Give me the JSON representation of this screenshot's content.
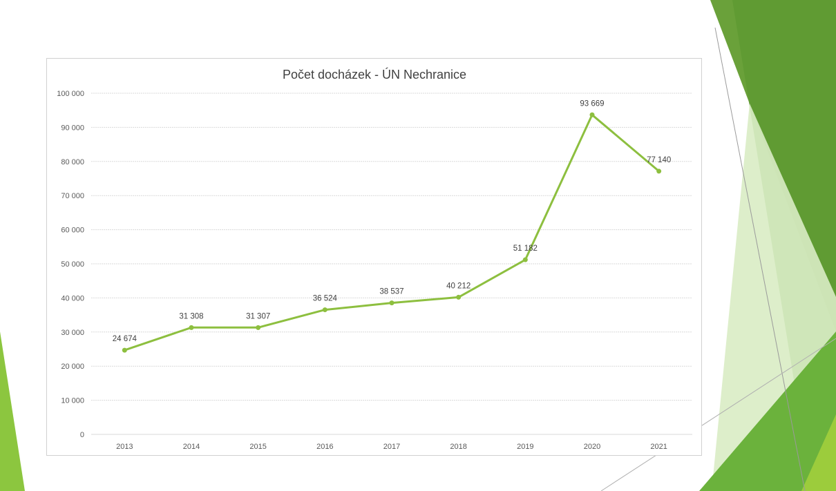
{
  "colors": {
    "series": "#8dbf3f",
    "accent_dark": "#5a9a32",
    "accent_light": "#c5e0a8"
  },
  "chart_data": {
    "type": "line",
    "title": "Počet docházek - ÚN Nechranice",
    "xlabel": "",
    "ylabel": "",
    "categories": [
      "2013",
      "2014",
      "2015",
      "2016",
      "2017",
      "2018",
      "2019",
      "2020",
      "2021"
    ],
    "series": [
      {
        "values": [
          24674,
          31308,
          31307,
          36524,
          38537,
          40212,
          51182,
          93669,
          77140
        ],
        "data_labels": [
          "24 674",
          "31 308",
          "31 307",
          "36 524",
          "38 537",
          "40 212",
          "51 182",
          "93 669",
          "77 140"
        ]
      }
    ],
    "ylim": [
      0,
      100000
    ],
    "y_ticks": [
      {
        "value": 0,
        "label": "0"
      },
      {
        "value": 10000,
        "label": "10 000"
      },
      {
        "value": 20000,
        "label": "20 000"
      },
      {
        "value": 30000,
        "label": "30 000"
      },
      {
        "value": 40000,
        "label": "40 000"
      },
      {
        "value": 50000,
        "label": "50 000"
      },
      {
        "value": 60000,
        "label": "60 000"
      },
      {
        "value": 70000,
        "label": "70 000"
      },
      {
        "value": 80000,
        "label": "80 000"
      },
      {
        "value": 90000,
        "label": "90 000"
      },
      {
        "value": 100000,
        "label": "100 000"
      }
    ],
    "grid": true,
    "legend": "none"
  }
}
